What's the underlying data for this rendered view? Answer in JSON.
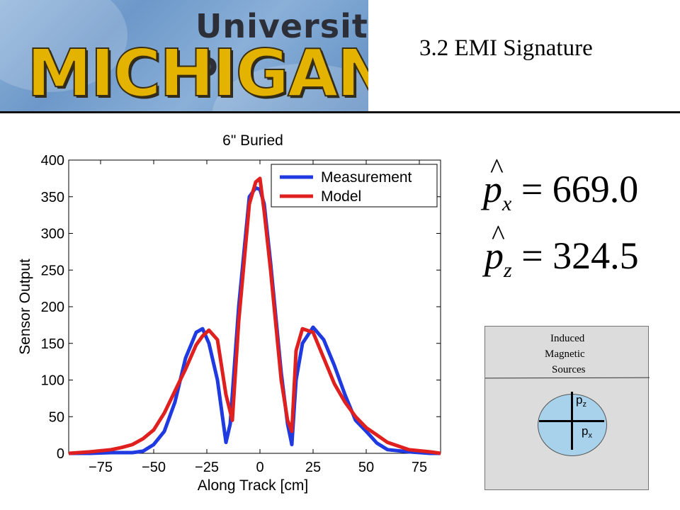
{
  "banner": {
    "line1": "University of",
    "line2": "MICHIGAN"
  },
  "slide": {
    "title": "3.2 EMI Signature"
  },
  "equations": [
    {
      "var": "p",
      "sub": "x",
      "rhs": "= 669.0"
    },
    {
      "var": "p",
      "sub": "z",
      "rhs": "= 324.5"
    }
  ],
  "diagram": {
    "label_lines": [
      "Induced",
      "Magnetic",
      "Sources"
    ],
    "pz": {
      "base": "p",
      "sub": "z"
    },
    "px": {
      "base": "p",
      "sub": "x"
    },
    "sphere_color": "#a8d2ec"
  },
  "chart_data": {
    "type": "line",
    "title": "6\" Buried",
    "xlabel": "Along Track [cm]",
    "ylabel": "Sensor Output",
    "xlim": [
      -90,
      85
    ],
    "ylim": [
      0,
      400
    ],
    "xticks": [
      -75,
      -50,
      -25,
      0,
      25,
      50,
      75
    ],
    "xtick_labels": [
      "−75",
      "−50",
      "−25",
      "0",
      "25",
      "50",
      "75"
    ],
    "yticks": [
      0,
      50,
      100,
      150,
      200,
      250,
      300,
      350,
      400
    ],
    "legend": "top-right",
    "grid": false,
    "series": [
      {
        "name": "Measurement",
        "color": "#1f3ae0",
        "x": [
          -90,
          -80,
          -70,
          -60,
          -55,
          -50,
          -45,
          -40,
          -35,
          -30,
          -27,
          -24,
          -20,
          -16,
          -14,
          -10,
          -5,
          -2,
          0,
          2,
          5,
          10,
          13,
          15,
          17,
          20,
          25,
          30,
          35,
          40,
          45,
          50,
          55,
          60,
          70,
          80,
          85
        ],
        "y": [
          0,
          0,
          1,
          1,
          3,
          12,
          30,
          70,
          130,
          165,
          170,
          150,
          100,
          15,
          40,
          200,
          350,
          362,
          360,
          340,
          260,
          110,
          40,
          12,
          100,
          150,
          172,
          155,
          120,
          80,
          45,
          30,
          14,
          5,
          2,
          0,
          0
        ]
      },
      {
        "name": "Model",
        "color": "#e01f1f",
        "x": [
          -90,
          -80,
          -70,
          -65,
          -60,
          -55,
          -50,
          -45,
          -40,
          -35,
          -30,
          -27,
          -24,
          -20,
          -16,
          -13,
          -10,
          -5,
          -2,
          0,
          2,
          5,
          10,
          13,
          15,
          17,
          20,
          25,
          30,
          35,
          40,
          45,
          50,
          55,
          60,
          70,
          80,
          85
        ],
        "y": [
          0,
          2,
          5,
          8,
          12,
          20,
          32,
          55,
          85,
          115,
          148,
          160,
          168,
          155,
          80,
          45,
          180,
          340,
          370,
          375,
          330,
          250,
          100,
          45,
          30,
          140,
          170,
          165,
          130,
          95,
          70,
          50,
          35,
          25,
          15,
          5,
          2,
          0
        ]
      }
    ]
  }
}
